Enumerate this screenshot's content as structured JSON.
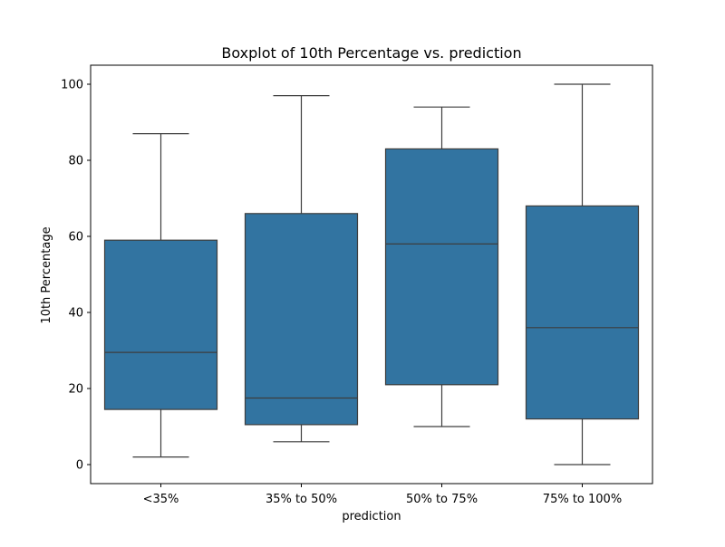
{
  "chart_data": {
    "type": "boxplot",
    "title": "Boxplot of 10th Percentage vs. prediction",
    "xlabel": "prediction",
    "ylabel": "10th Percentage",
    "ylim": [
      -5,
      105
    ],
    "yticks": [
      0,
      20,
      40,
      60,
      80,
      100
    ],
    "grid": false,
    "legend": "none",
    "categories": [
      "<35%",
      "35% to 50%",
      "50% to 75%",
      "75% to 100%"
    ],
    "boxes": [
      {
        "category": "<35%",
        "whisker_low": 2,
        "q1": 14.5,
        "median": 29.5,
        "q3": 59,
        "whisker_high": 87
      },
      {
        "category": "35% to 50%",
        "whisker_low": 6,
        "q1": 10.5,
        "median": 17.5,
        "q3": 66,
        "whisker_high": 97
      },
      {
        "category": "50% to 75%",
        "whisker_low": 10,
        "q1": 21,
        "median": 58,
        "q3": 83,
        "whisker_high": 94
      },
      {
        "category": "75% to 100%",
        "whisker_low": 0,
        "q1": 12,
        "median": 36,
        "q3": 68,
        "whisker_high": 100
      }
    ],
    "colors": {
      "box_fill": "#3274a1",
      "line": "#3d3d3d",
      "axis": "#000000"
    }
  }
}
